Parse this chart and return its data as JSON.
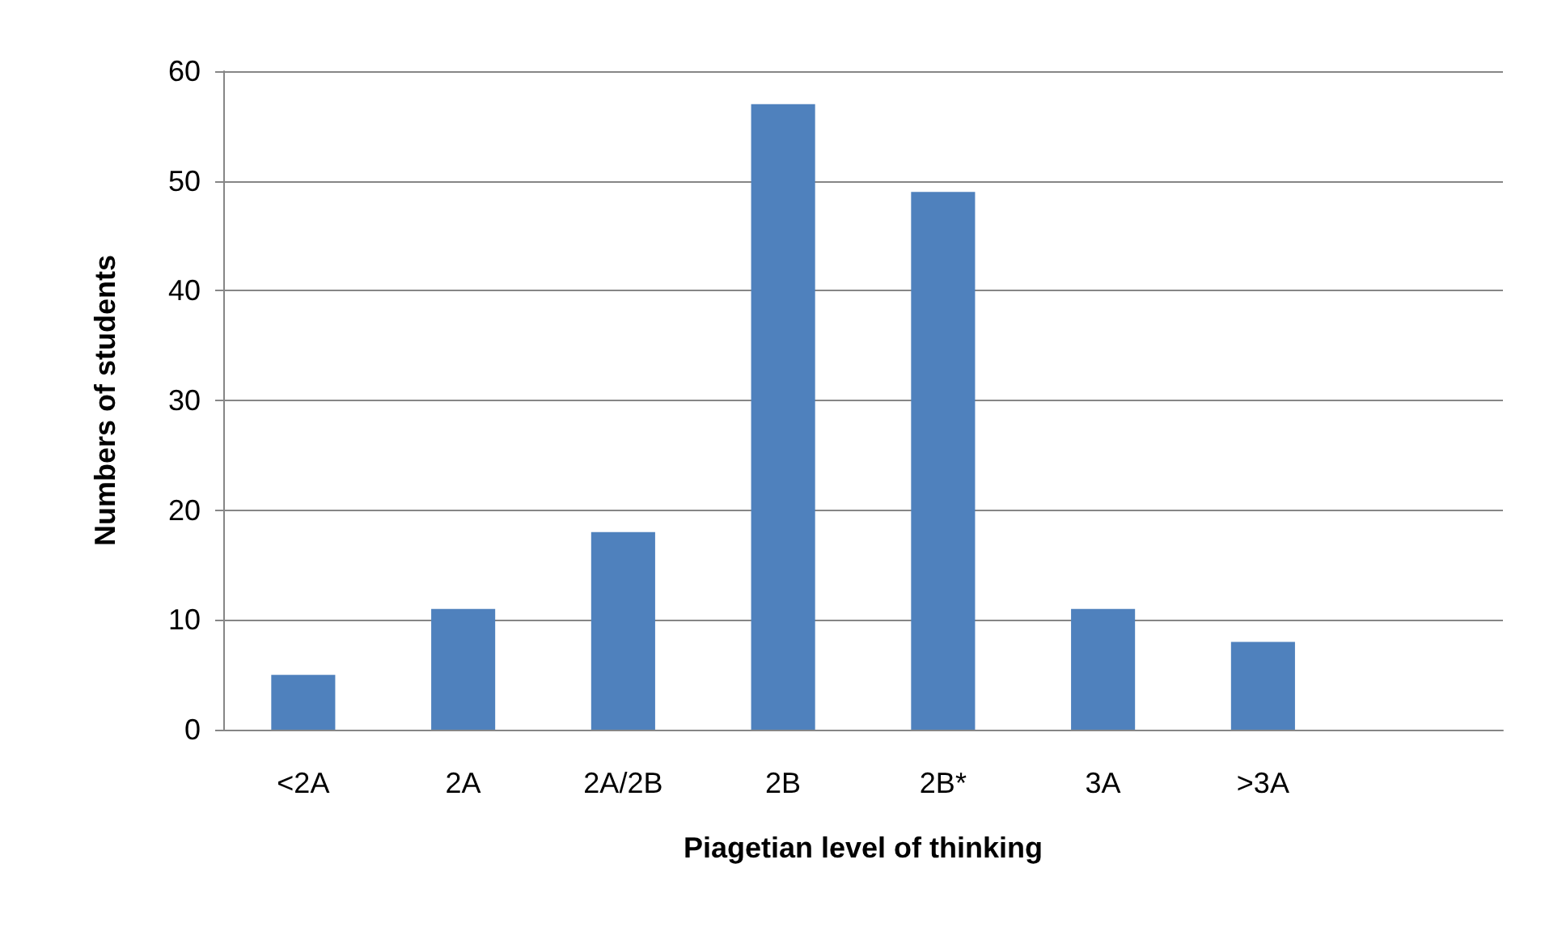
{
  "chart_data": {
    "type": "bar",
    "xlabel": "Piagetian level of thinking",
    "ylabel": "Numbers of students",
    "categories": [
      "<2A",
      "2A",
      "2A/2B",
      "2B",
      "2B*",
      "3A",
      ">3A",
      null
    ],
    "values": [
      5,
      11,
      18,
      57,
      49,
      11,
      8,
      null
    ],
    "color": "#4f81bd",
    "ylim": [
      0,
      60
    ],
    "yticks": [
      0,
      10,
      20,
      30,
      40,
      50,
      60
    ],
    "grid": "y"
  }
}
